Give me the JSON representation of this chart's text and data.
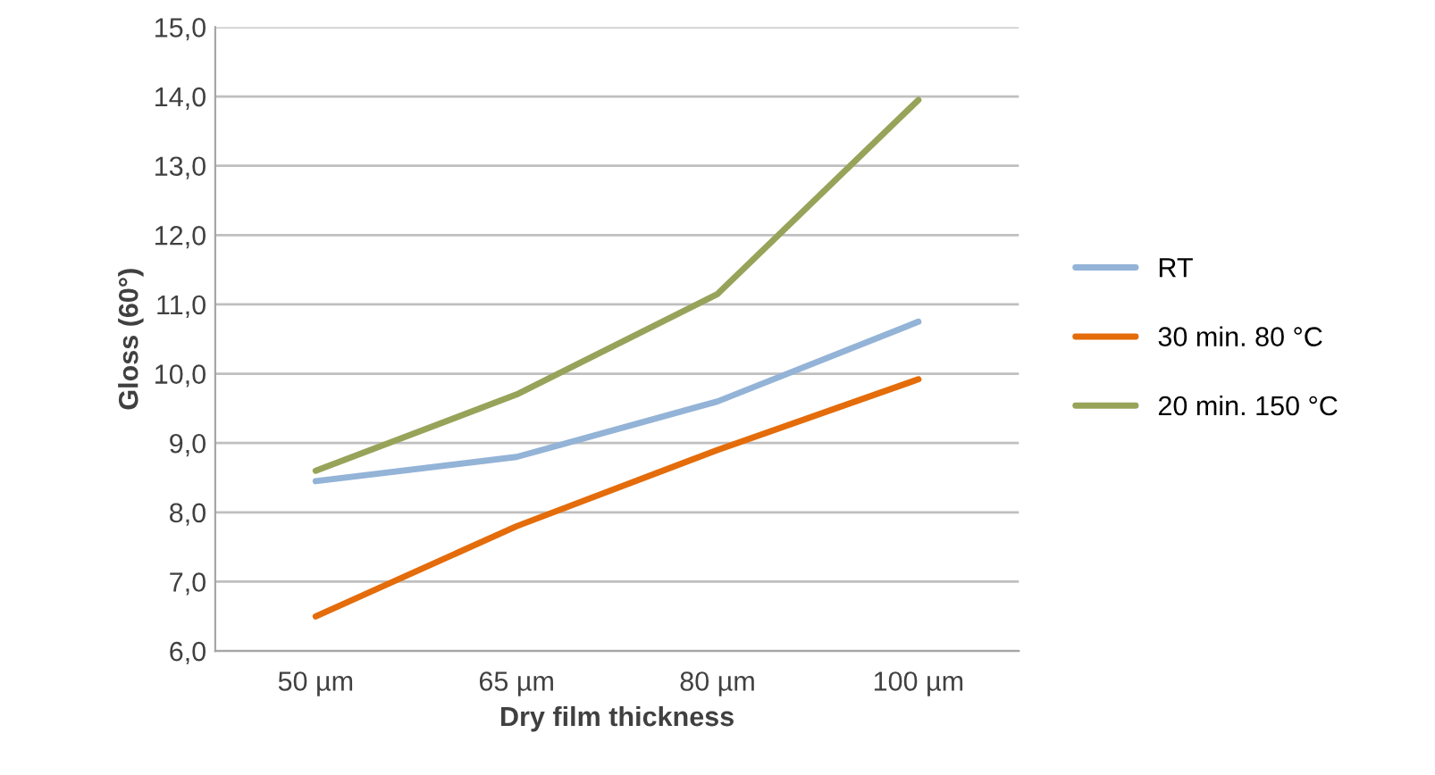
{
  "chart_data": {
    "type": "line",
    "xlabel": "Dry film thickness",
    "ylabel": "Gloss (60°)",
    "categories": [
      "50 µm",
      "65 µm",
      "80 µm",
      "100 µm"
    ],
    "series": [
      {
        "name": "RT",
        "color": "#93b3d7",
        "values": [
          8.45,
          8.8,
          9.6,
          10.75
        ]
      },
      {
        "name": "30 min. 80 °C",
        "color": "#e46c0a",
        "values": [
          6.5,
          7.8,
          8.9,
          9.92
        ]
      },
      {
        "name": "20 min. 150 °C",
        "color": "#98a35a",
        "values": [
          8.6,
          9.7,
          11.15,
          13.95
        ]
      }
    ],
    "ylim": [
      6,
      15
    ],
    "yticks": [
      {
        "value": 6,
        "label": "6,0"
      },
      {
        "value": 7,
        "label": "7,0"
      },
      {
        "value": 8,
        "label": "8,0"
      },
      {
        "value": 9,
        "label": "9,0"
      },
      {
        "value": 10,
        "label": "10,0"
      },
      {
        "value": 11,
        "label": "11,0"
      },
      {
        "value": 12,
        "label": "12,0"
      },
      {
        "value": 13,
        "label": "13,0"
      },
      {
        "value": 14,
        "label": "14,0"
      },
      {
        "value": 15,
        "label": "15,0"
      }
    ],
    "grid": "y",
    "legend": "right",
    "marker": "none",
    "line_style": "solid"
  }
}
